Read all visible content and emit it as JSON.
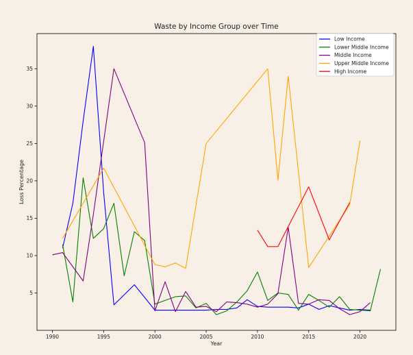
{
  "chart_data": {
    "type": "line",
    "title": "Waste by Income Group over Time",
    "xlabel": "Year",
    "ylabel": "Loss Percentage",
    "xlim": [
      1988.5,
      2023.5
    ],
    "ylim": [
      0,
      39.7
    ],
    "xticks": [
      1990,
      1995,
      2000,
      2005,
      2010,
      2015,
      2020
    ],
    "yticks": [
      5,
      10,
      15,
      20,
      25,
      30,
      35
    ],
    "grid": false,
    "legend_position": "top-right",
    "series": [
      {
        "name": "Low Income",
        "color": "#0000ff",
        "x": [
          1991,
          1992,
          1993,
          1994,
          1995,
          1996,
          1998,
          1999,
          2000,
          2001,
          2002,
          2003,
          2004,
          2005,
          2006,
          2007,
          2008,
          2009,
          2010,
          2011,
          2012,
          2013,
          2014,
          2015,
          2016,
          2017,
          2018,
          2019,
          2020,
          2021
        ],
        "y": [
          11,
          17,
          28,
          38,
          18.5,
          3.4,
          6.1,
          4.4,
          2.7,
          2.7,
          2.7,
          2.7,
          2.7,
          2.7,
          2.8,
          2.8,
          3.0,
          4.1,
          3.2,
          3.1,
          3.1,
          3.1,
          3.0,
          3.5,
          2.8,
          3.3,
          3.0,
          2.7,
          2.8,
          2.7
        ]
      },
      {
        "name": "Lower Middle Income",
        "color": "#008000",
        "x": [
          1991,
          1992,
          1993,
          1994,
          1995,
          1996,
          1997,
          1998,
          1999,
          2000,
          2001,
          2002,
          2003,
          2004,
          2005,
          2006,
          2007,
          2008,
          2009,
          2010,
          2011,
          2012,
          2013,
          2014,
          2015,
          2016,
          2017,
          2018,
          2019,
          2020,
          2021,
          2022
        ],
        "y": [
          11.5,
          3.8,
          20.4,
          12.3,
          13.6,
          17.0,
          7.3,
          13.2,
          12.0,
          3.5,
          4.0,
          4.5,
          4.6,
          3.0,
          3.6,
          2.1,
          2.6,
          3.8,
          5.3,
          7.8,
          4.0,
          5.0,
          4.8,
          2.7,
          4.8,
          4.0,
          3.1,
          4.5,
          2.8,
          2.7,
          2.6,
          8.2
        ]
      },
      {
        "name": "Middle Income",
        "color": "#800080",
        "x": [
          1990,
          1991,
          1993,
          1994,
          1996,
          1999,
          2000,
          2001,
          2002,
          2003,
          2004,
          2005,
          2006,
          2007,
          2008,
          2009,
          2010,
          2011,
          2012,
          2013,
          2014,
          2015,
          2016,
          2017,
          2018,
          2019,
          2020,
          2021
        ],
        "y": [
          10.1,
          10.4,
          6.6,
          15.5,
          35.0,
          25.1,
          2.6,
          6.5,
          2.5,
          5.2,
          3.1,
          3.2,
          2.5,
          3.8,
          3.7,
          3.5,
          3.1,
          3.5,
          4.9,
          13.8,
          3.6,
          3.5,
          4.1,
          4.0,
          2.9,
          2.1,
          2.5,
          3.7
        ]
      },
      {
        "name": "Upper Middle Income",
        "color": "#ffa500",
        "x": [
          1991,
          1995,
          2000,
          2001,
          2002,
          2003,
          2005,
          2011,
          2012,
          2013,
          2015,
          2019,
          2020
        ],
        "y": [
          12.3,
          21.7,
          8.8,
          8.5,
          9.0,
          8.3,
          25.0,
          35.0,
          20.1,
          34.0,
          8.4,
          16.8,
          25.4
        ]
      },
      {
        "name": "High Income",
        "color": "#ff0000",
        "x": [
          2010,
          2011,
          2012,
          2015,
          2017,
          2019
        ],
        "y": [
          13.4,
          11.2,
          11.2,
          19.2,
          12.1,
          17.1
        ]
      }
    ]
  }
}
